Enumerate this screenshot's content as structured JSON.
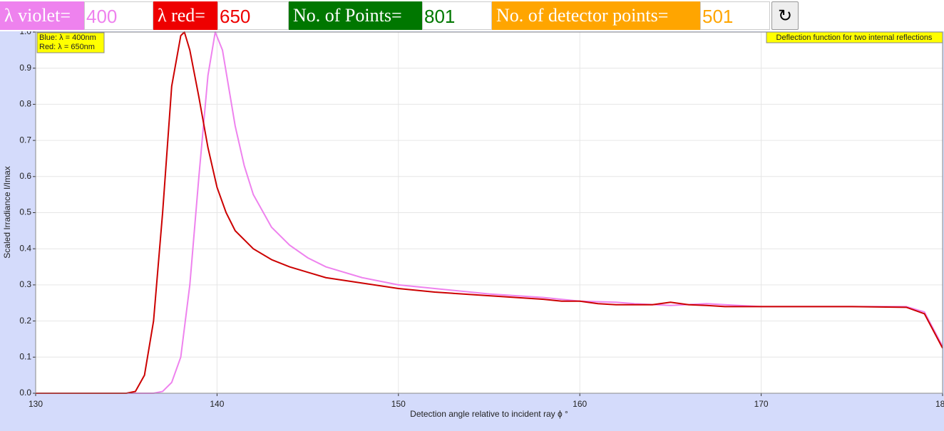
{
  "controls": [
    {
      "label": "λ violet=",
      "value": "400"
    },
    {
      "label": "λ red=",
      "value": "650"
    },
    {
      "label": "No. of Points=",
      "value": "801"
    },
    {
      "label": "No. of detector points=",
      "value": "501"
    }
  ],
  "reset_button": "↻",
  "chart_data": {
    "type": "line",
    "xlabel": "Detection angle relative to incident ray ϕ °",
    "ylabel": "Scaled Irradiance I/Imax",
    "annotation": "Deflection function for two internal reflections",
    "xlim": [
      130,
      180
    ],
    "xticks": [
      130,
      140,
      150,
      160,
      170,
      180
    ],
    "ylim": [
      0,
      1
    ],
    "yticks": [
      {
        "value": 0,
        "label": "0.0"
      },
      0.1,
      0.2,
      0.3,
      0.4,
      0.5,
      0.6,
      0.7,
      0.8,
      0.9,
      {
        "value": 1,
        "label": "1.0"
      }
    ],
    "grid": true,
    "series": [
      {
        "name": "Blue: λ = 400nm",
        "color": "#ee82ee",
        "x": [
          130,
          135,
          136.5,
          137,
          137.5,
          138,
          138.5,
          139,
          139.5,
          139.9,
          140.3,
          140.7,
          141,
          141.5,
          142,
          143,
          144,
          145,
          146,
          148,
          150,
          152,
          155,
          158,
          160,
          162,
          163,
          165,
          167,
          168,
          170,
          175,
          178,
          179,
          180
        ],
        "values": [
          0,
          0,
          0,
          0.005,
          0.03,
          0.1,
          0.3,
          0.6,
          0.88,
          1.0,
          0.95,
          0.83,
          0.74,
          0.63,
          0.55,
          0.46,
          0.41,
          0.375,
          0.35,
          0.32,
          0.3,
          0.29,
          0.275,
          0.265,
          0.255,
          0.252,
          0.248,
          0.243,
          0.248,
          0.245,
          0.24,
          0.24,
          0.24,
          0.225,
          0.13
        ]
      },
      {
        "name": "Red: λ = 650nm",
        "color": "#cc0000",
        "x": [
          130,
          135,
          135.5,
          136,
          136.5,
          137,
          137.5,
          138,
          138.2,
          138.5,
          139,
          139.5,
          140,
          140.5,
          141,
          142,
          143,
          144,
          145,
          146,
          148,
          150,
          152,
          155,
          158,
          159,
          160,
          161,
          162,
          163,
          164,
          165,
          166,
          167,
          168,
          170,
          175,
          178,
          179,
          180
        ],
        "values": [
          0,
          0,
          0.005,
          0.05,
          0.2,
          0.5,
          0.85,
          0.99,
          1.0,
          0.95,
          0.82,
          0.68,
          0.57,
          0.5,
          0.45,
          0.4,
          0.37,
          0.35,
          0.335,
          0.32,
          0.305,
          0.29,
          0.28,
          0.27,
          0.26,
          0.255,
          0.255,
          0.248,
          0.245,
          0.245,
          0.245,
          0.252,
          0.245,
          0.243,
          0.24,
          0.24,
          0.24,
          0.238,
          0.22,
          0.125
        ]
      }
    ]
  }
}
